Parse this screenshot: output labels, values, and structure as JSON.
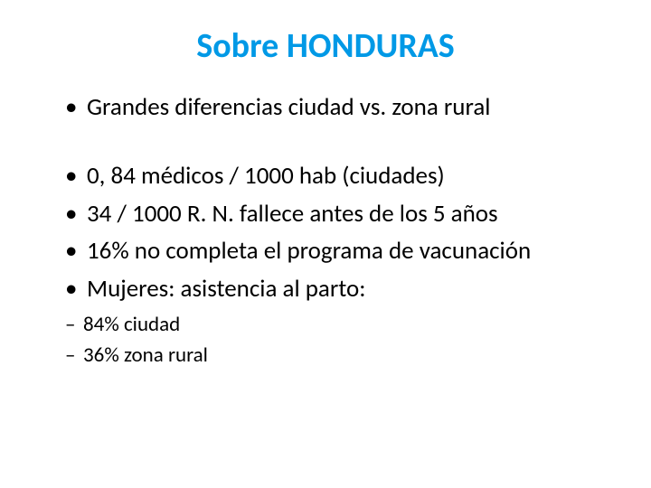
{
  "title": {
    "text": "Sobre HONDURAS",
    "color": "#0099e6",
    "fontsize": 38
  },
  "bullets": {
    "fontsize": 27,
    "color": "#000000",
    "items": [
      "Grandes diferencias ciudad vs. zona rural",
      "0, 84 médicos / 1000 hab (ciudades)",
      "34 / 1000 R. N. fallece antes de los 5 años",
      "16% no completa el programa de vacunación",
      "Mujeres: asistencia al parto:"
    ]
  },
  "subbullets": {
    "fontsize": 23,
    "color": "#000000",
    "items": [
      "84% ciudad",
      "36% zona rural"
    ]
  },
  "background_color": "#ffffff"
}
